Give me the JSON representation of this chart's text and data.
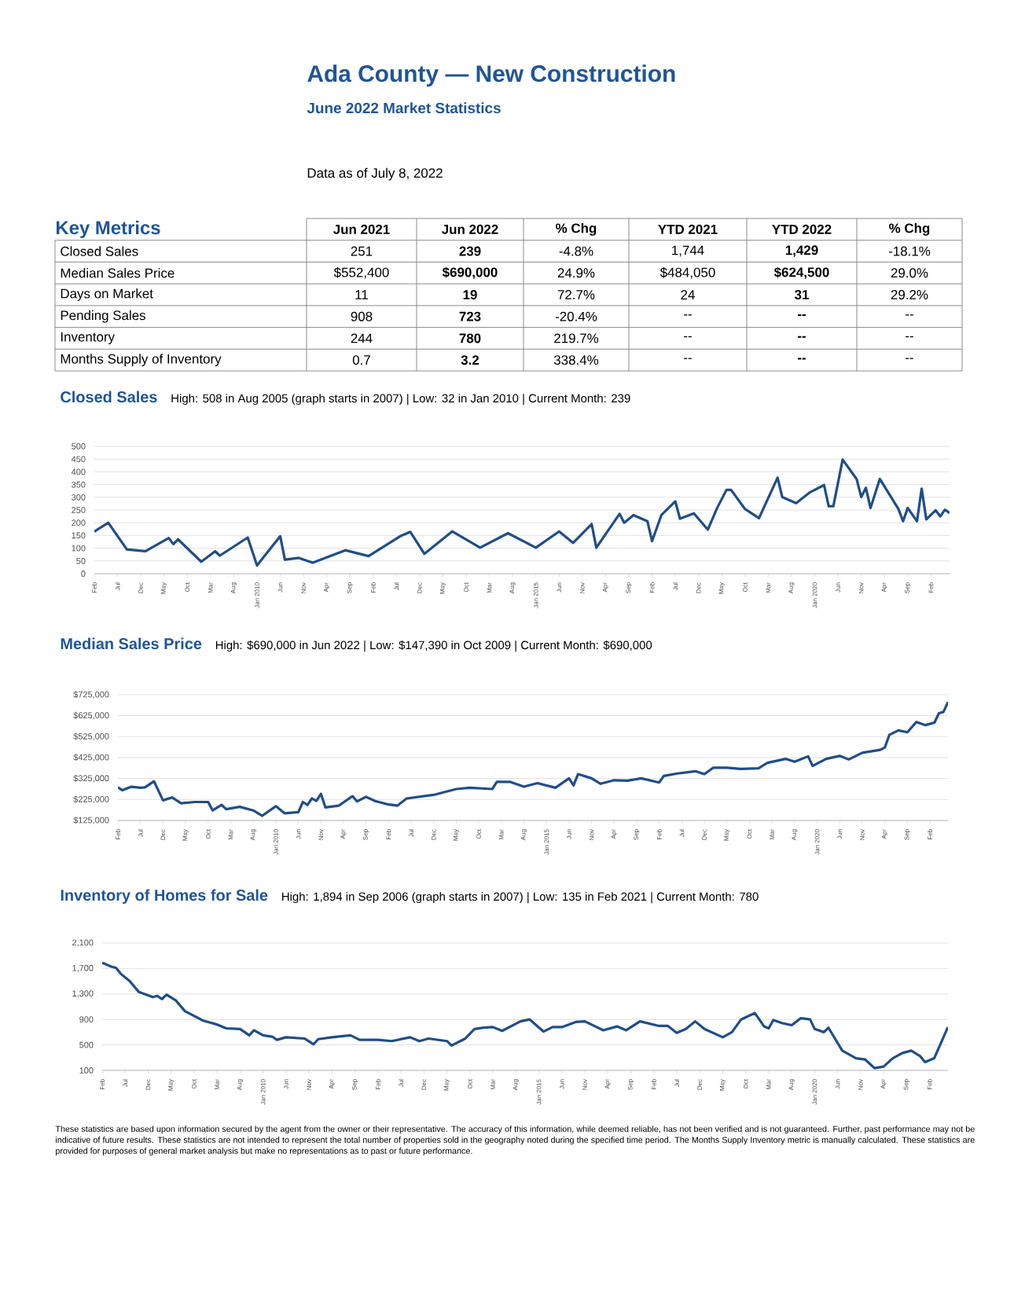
{
  "chart_data": [
    {
      "type": "other",
      "title": "Ada County — New Construction",
      "subtitle": "June 2022 Market Statistics",
      "annotations": [
        "Data as of July 8, 2022"
      ]
    },
    {
      "type": "other",
      "title": "Key Metrics",
      "categories": [
        "Jun 2021",
        "Jun 2022",
        "% Chg",
        "YTD 2021",
        "YTD 2022",
        "% Chg"
      ],
      "y_categories": [
        "Closed Sales",
        "Median Sales Price",
        "Days on Market",
        "Pending Sales",
        "Inventory",
        "Months Supply of Inventory"
      ],
      "cell_labels": [
        [
          "251",
          "239",
          "-4.8%",
          "1,744",
          "1,429",
          "-18.1%"
        ],
        [
          "$552,400",
          "$690,000",
          "24.9%",
          "$484,050",
          "$624,500",
          "29.0%"
        ],
        [
          "11",
          "19",
          "72.7%",
          "24",
          "31",
          "29.2%"
        ],
        [
          "908",
          "723",
          "-20.4%",
          "--",
          "--",
          "--"
        ],
        [
          "244",
          "780",
          "219.7%",
          "--",
          "--",
          "--"
        ],
        [
          "0.7",
          "3.2",
          "338.4%",
          "--",
          "--",
          "--"
        ]
      ]
    },
    {
      "type": "line",
      "title": "Closed Sales",
      "subtitle": "High: 508 in Aug 2005 (graph starts in 2007) | Low: 32 in Jan 2010 | Current Month: 239",
      "x": [
        "2007-02",
        "2007-05",
        "2007-09",
        "2008-01",
        "2008-06",
        "2008-07",
        "2008-08",
        "2009-01",
        "2009-04",
        "2009-05",
        "2009-11",
        "2010-01",
        "2010-06",
        "2010-07",
        "2010-10",
        "2011-01",
        "2011-08",
        "2012-01",
        "2012-08",
        "2012-10",
        "2013-01",
        "2013-07",
        "2014-01",
        "2014-07",
        "2015-01",
        "2015-06",
        "2015-09",
        "2016-01",
        "2016-02",
        "2016-07",
        "2016-08",
        "2016-10",
        "2017-01",
        "2017-02",
        "2017-04",
        "2017-07",
        "2017-08",
        "2017-11",
        "2018-02",
        "2018-04",
        "2018-06",
        "2018-07",
        "2018-10",
        "2019-01",
        "2019-05",
        "2019-06",
        "2019-09",
        "2019-12",
        "2020-03",
        "2020-04",
        "2020-05",
        "2020-07",
        "2020-10",
        "2020-11",
        "2020-12",
        "2021-01",
        "2021-03",
        "2021-07",
        "2021-08",
        "2021-09",
        "2021-11",
        "2021-12",
        "2022-01",
        "2022-03",
        "2022-04",
        "2022-05",
        "2022-06"
      ],
      "series": [
        {
          "color": "#1f4e89",
          "values": [
            165,
            200,
            95,
            88,
            140,
            116,
            135,
            47,
            88,
            71,
            142,
            32,
            147,
            55,
            62,
            43,
            92,
            69,
            149,
            164,
            78,
            166,
            102,
            159,
            102,
            166,
            121,
            195,
            102,
            235,
            200,
            230,
            206,
            128,
            230,
            284,
            216,
            237,
            173,
            258,
            329,
            329,
            254,
            218,
            377,
            301,
            277,
            320,
            348,
            265,
            265,
            448,
            372,
            301,
            337,
            258,
            372,
            254,
            206,
            258,
            206,
            334,
            213,
            249,
            225,
            251,
            239
          ]
        }
      ],
      "xlim": [
        "2007-02",
        "2022-06"
      ],
      "ylim": [
        0,
        500
      ],
      "yticks": [
        0,
        50,
        100,
        150,
        200,
        250,
        300,
        350,
        400,
        450,
        500
      ],
      "xticks": [
        {
          "value": "2007-02",
          "label": "Feb"
        },
        {
          "value": "2007-07",
          "label": "Jul"
        },
        {
          "value": "2007-12",
          "label": "Dec"
        },
        {
          "value": "2008-05",
          "label": "May"
        },
        {
          "value": "2008-10",
          "label": "Oct"
        },
        {
          "value": "2009-03",
          "label": "Mar"
        },
        {
          "value": "2009-08",
          "label": "Aug"
        },
        {
          "value": "2010-01",
          "label": "Jan 2010"
        },
        {
          "value": "2010-06",
          "label": "Jun"
        },
        {
          "value": "2010-11",
          "label": "Nov"
        },
        {
          "value": "2011-04",
          "label": "Apr"
        },
        {
          "value": "2011-09",
          "label": "Sep"
        },
        {
          "value": "2012-02",
          "label": "Feb"
        },
        {
          "value": "2012-07",
          "label": "Jul"
        },
        {
          "value": "2012-12",
          "label": "Dec"
        },
        {
          "value": "2013-05",
          "label": "May"
        },
        {
          "value": "2013-10",
          "label": "Oct"
        },
        {
          "value": "2014-03",
          "label": "Mar"
        },
        {
          "value": "2014-08",
          "label": "Aug"
        },
        {
          "value": "2015-01",
          "label": "Jan 2015"
        },
        {
          "value": "2015-06",
          "label": "Jun"
        },
        {
          "value": "2015-11",
          "label": "Nov"
        },
        {
          "value": "2016-04",
          "label": "Apr"
        },
        {
          "value": "2016-09",
          "label": "Sep"
        },
        {
          "value": "2017-02",
          "label": "Feb"
        },
        {
          "value": "2017-07",
          "label": "Jul"
        },
        {
          "value": "2017-12",
          "label": "Dec"
        },
        {
          "value": "2018-05",
          "label": "May"
        },
        {
          "value": "2018-10",
          "label": "Oct"
        },
        {
          "value": "2019-03",
          "label": "Mar"
        },
        {
          "value": "2019-08",
          "label": "Aug"
        },
        {
          "value": "2020-01",
          "label": "Jan 2020"
        },
        {
          "value": "2020-06",
          "label": "Jun"
        },
        {
          "value": "2020-11",
          "label": "Nov"
        },
        {
          "value": "2021-04",
          "label": "Apr"
        },
        {
          "value": "2021-09",
          "label": "Sep"
        },
        {
          "value": "2022-02",
          "label": "Feb"
        }
      ],
      "grid": "y"
    },
    {
      "type": "line",
      "title": "Median Sales Price",
      "subtitle": "High: $690,000 in Jun 2022 | Low: $147,390 in Oct 2009 | Current Month: $690,000",
      "x": [
        "2007-02",
        "2007-03",
        "2007-05",
        "2007-07",
        "2007-08",
        "2007-10",
        "2007-12",
        "2008-02",
        "2008-04",
        "2008-07",
        "2008-10",
        "2008-11",
        "2009-01",
        "2009-02",
        "2009-05",
        "2009-08",
        "2009-10",
        "2010-01",
        "2010-03",
        "2010-06",
        "2010-07",
        "2010-08",
        "2010-09",
        "2010-10",
        "2010-11",
        "2010-12",
        "2011-03",
        "2011-06",
        "2011-07",
        "2011-09",
        "2011-11",
        "2012-02",
        "2012-04",
        "2012-06",
        "2012-12",
        "2013-05",
        "2013-08",
        "2014-01",
        "2014-02",
        "2014-05",
        "2014-08",
        "2014-11",
        "2015-03",
        "2015-06",
        "2015-07",
        "2015-08",
        "2015-11",
        "2016-01",
        "2016-04",
        "2016-07",
        "2016-10",
        "2017-02",
        "2017-03",
        "2017-06",
        "2017-10",
        "2017-12",
        "2018-02",
        "2018-05",
        "2018-08",
        "2018-12",
        "2019-02",
        "2019-06",
        "2019-08",
        "2019-11",
        "2019-12",
        "2020-03",
        "2020-06",
        "2020-08",
        "2020-11",
        "2021-03",
        "2021-04",
        "2021-05",
        "2021-07",
        "2021-09",
        "2021-11",
        "2022-01",
        "2022-03",
        "2022-04",
        "2022-05",
        "2022-06"
      ],
      "series": [
        {
          "color": "#1f4e89",
          "values": [
            283000,
            269000,
            286000,
            281000,
            283000,
            312000,
            221000,
            235000,
            207000,
            213000,
            213000,
            173000,
            199000,
            179000,
            190000,
            173000,
            147390,
            193000,
            159000,
            165000,
            213000,
            199000,
            230000,
            218000,
            252000,
            187000,
            196000,
            241000,
            216000,
            238000,
            218000,
            201000,
            196000,
            230000,
            247000,
            275000,
            281000,
            275000,
            309000,
            309000,
            286000,
            303000,
            281000,
            326000,
            292000,
            346000,
            326000,
            300000,
            317000,
            315000,
            326000,
            306000,
            337000,
            349000,
            360000,
            346000,
            377000,
            377000,
            371000,
            374000,
            400000,
            419000,
            405000,
            431000,
            385000,
            419000,
            433000,
            416000,
            448000,
            462000,
            473000,
            533000,
            555000,
            546000,
            595000,
            580000,
            592000,
            637000,
            643000,
            690000
          ]
        }
      ],
      "xlim": [
        "2007-02",
        "2022-06"
      ],
      "ylim": [
        125000,
        725000
      ],
      "yticks": [
        {
          "value": 125000,
          "label": "$125,000"
        },
        {
          "value": 225000,
          "label": "$225,000"
        },
        {
          "value": 325000,
          "label": "$325,000"
        },
        {
          "value": 425000,
          "label": "$425,000"
        },
        {
          "value": 525000,
          "label": "$525,000"
        },
        {
          "value": 625000,
          "label": "$625,000"
        },
        {
          "value": 725000,
          "label": "$725,000"
        }
      ],
      "xticks": [
        {
          "value": "2007-02",
          "label": "Feb"
        },
        {
          "value": "2007-07",
          "label": "Jul"
        },
        {
          "value": "2007-12",
          "label": "Dec"
        },
        {
          "value": "2008-05",
          "label": "May"
        },
        {
          "value": "2008-10",
          "label": "Oct"
        },
        {
          "value": "2009-03",
          "label": "Mar"
        },
        {
          "value": "2009-08",
          "label": "Aug"
        },
        {
          "value": "2010-01",
          "label": "Jan 2010"
        },
        {
          "value": "2010-06",
          "label": "Jun"
        },
        {
          "value": "2010-11",
          "label": "Nov"
        },
        {
          "value": "2011-04",
          "label": "Apr"
        },
        {
          "value": "2011-09",
          "label": "Sep"
        },
        {
          "value": "2012-02",
          "label": "Feb"
        },
        {
          "value": "2012-07",
          "label": "Jul"
        },
        {
          "value": "2012-12",
          "label": "Dec"
        },
        {
          "value": "2013-05",
          "label": "May"
        },
        {
          "value": "2013-10",
          "label": "Oct"
        },
        {
          "value": "2014-03",
          "label": "Mar"
        },
        {
          "value": "2014-08",
          "label": "Aug"
        },
        {
          "value": "2015-01",
          "label": "Jan 2015"
        },
        {
          "value": "2015-06",
          "label": "Jun"
        },
        {
          "value": "2015-11",
          "label": "Nov"
        },
        {
          "value": "2016-04",
          "label": "Apr"
        },
        {
          "value": "2016-09",
          "label": "Sep"
        },
        {
          "value": "2017-02",
          "label": "Feb"
        },
        {
          "value": "2017-07",
          "label": "Jul"
        },
        {
          "value": "2017-12",
          "label": "Dec"
        },
        {
          "value": "2018-05",
          "label": "May"
        },
        {
          "value": "2018-10",
          "label": "Oct"
        },
        {
          "value": "2019-03",
          "label": "Mar"
        },
        {
          "value": "2019-08",
          "label": "Aug"
        },
        {
          "value": "2020-01",
          "label": "Jan 2020"
        },
        {
          "value": "2020-06",
          "label": "Jun"
        },
        {
          "value": "2020-11",
          "label": "Nov"
        },
        {
          "value": "2021-04",
          "label": "Apr"
        },
        {
          "value": "2021-09",
          "label": "Sep"
        },
        {
          "value": "2022-02",
          "label": "Feb"
        }
      ],
      "grid": "y"
    },
    {
      "type": "line",
      "title": "Inventory of Homes for Sale",
      "subtitle": "High: 1,894 in Sep 2006 (graph starts in 2007) | Low: 135 in Feb 2021 | Current Month: 780",
      "x": [
        "2007-02",
        "2007-04",
        "2007-05",
        "2007-06",
        "2007-08",
        "2007-10",
        "2008-01",
        "2008-02",
        "2008-03",
        "2008-04",
        "2008-06",
        "2008-08",
        "2008-12",
        "2009-03",
        "2009-05",
        "2009-08",
        "2009-10",
        "2009-11",
        "2010-01",
        "2010-03",
        "2010-04",
        "2010-06",
        "2010-10",
        "2010-12",
        "2011-01",
        "2011-04",
        "2011-08",
        "2011-10",
        "2012-02",
        "2012-05",
        "2012-09",
        "2012-11",
        "2013-01",
        "2013-05",
        "2013-06",
        "2013-09",
        "2013-11",
        "2014-01",
        "2014-03",
        "2014-05",
        "2014-09",
        "2014-11",
        "2015-02",
        "2015-04",
        "2015-06",
        "2015-09",
        "2015-11",
        "2016-03",
        "2016-06",
        "2016-08",
        "2016-11",
        "2017-03",
        "2017-05",
        "2017-07",
        "2017-09",
        "2017-11",
        "2018-01",
        "2018-05",
        "2018-07",
        "2018-09",
        "2018-12",
        "2019-02",
        "2019-03",
        "2019-04",
        "2019-06",
        "2019-08",
        "2019-10",
        "2019-12",
        "2020-01",
        "2020-03",
        "2020-04",
        "2020-07",
        "2020-10",
        "2020-12",
        "2021-02",
        "2021-04",
        "2021-06",
        "2021-08",
        "2021-10",
        "2021-12",
        "2022-01",
        "2022-03",
        "2022-06"
      ],
      "series": [
        {
          "color": "#1f4e89",
          "values": [
            1790,
            1730,
            1710,
            1620,
            1500,
            1330,
            1250,
            1270,
            1220,
            1290,
            1200,
            1030,
            880,
            820,
            760,
            750,
            650,
            730,
            650,
            630,
            580,
            620,
            600,
            510,
            590,
            620,
            650,
            580,
            580,
            560,
            620,
            560,
            600,
            560,
            490,
            600,
            750,
            770,
            780,
            720,
            870,
            900,
            710,
            780,
            780,
            860,
            870,
            730,
            790,
            730,
            870,
            800,
            800,
            690,
            750,
            870,
            750,
            620,
            700,
            900,
            1000,
            790,
            760,
            890,
            840,
            810,
            920,
            900,
            750,
            700,
            770,
            410,
            290,
            270,
            135,
            160,
            290,
            370,
            410,
            320,
            230,
            290,
            780
          ]
        }
      ],
      "xlim": [
        "2007-02",
        "2022-06"
      ],
      "ylim": [
        100,
        2100
      ],
      "yticks": [
        100,
        500,
        900,
        {
          "value": 1300,
          "label": "1,300"
        },
        {
          "value": 1700,
          "label": "1,700"
        },
        {
          "value": 2100,
          "label": "2,100"
        }
      ],
      "xticks": [
        {
          "value": "2007-02",
          "label": "Feb"
        },
        {
          "value": "2007-07",
          "label": "Jul"
        },
        {
          "value": "2007-12",
          "label": "Dec"
        },
        {
          "value": "2008-05",
          "label": "May"
        },
        {
          "value": "2008-10",
          "label": "Oct"
        },
        {
          "value": "2009-03",
          "label": "Mar"
        },
        {
          "value": "2009-08",
          "label": "Aug"
        },
        {
          "value": "2010-01",
          "label": "Jan 2010"
        },
        {
          "value": "2010-06",
          "label": "Jun"
        },
        {
          "value": "2010-11",
          "label": "Nov"
        },
        {
          "value": "2011-04",
          "label": "Apr"
        },
        {
          "value": "2011-09",
          "label": "Sep"
        },
        {
          "value": "2012-02",
          "label": "Feb"
        },
        {
          "value": "2012-07",
          "label": "Jul"
        },
        {
          "value": "2012-12",
          "label": "Dec"
        },
        {
          "value": "2013-05",
          "label": "May"
        },
        {
          "value": "2013-10",
          "label": "Oct"
        },
        {
          "value": "2014-03",
          "label": "Mar"
        },
        {
          "value": "2014-08",
          "label": "Aug"
        },
        {
          "value": "2015-01",
          "label": "Jan 2015"
        },
        {
          "value": "2015-06",
          "label": "Jun"
        },
        {
          "value": "2015-11",
          "label": "Nov"
        },
        {
          "value": "2016-04",
          "label": "Apr"
        },
        {
          "value": "2016-09",
          "label": "Sep"
        },
        {
          "value": "2017-02",
          "label": "Feb"
        },
        {
          "value": "2017-07",
          "label": "Jul"
        },
        {
          "value": "2017-12",
          "label": "Dec"
        },
        {
          "value": "2018-05",
          "label": "May"
        },
        {
          "value": "2018-10",
          "label": "Oct"
        },
        {
          "value": "2019-03",
          "label": "Mar"
        },
        {
          "value": "2019-08",
          "label": "Aug"
        },
        {
          "value": "2020-01",
          "label": "Jan 2020"
        },
        {
          "value": "2020-06",
          "label": "Jun"
        },
        {
          "value": "2020-11",
          "label": "Nov"
        },
        {
          "value": "2021-04",
          "label": "Apr"
        },
        {
          "value": "2021-09",
          "label": "Sep"
        },
        {
          "value": "2022-02",
          "label": "Feb"
        }
      ],
      "grid": "y",
      "annotations": [
        "These statistics are based upon information secured by the agent from the owner or their representative. The accuracy of this information, while deemed reliable, has not been verified and is not guaranteed. Further, past performance may not be indicative of future results. These statistics are not intended to represent the total number of properties sold in the geography noted during the specified time period. The Months Supply Inventory metric is manually calculated. These statistics are provided for purposes of general market analysis but make no representations as to past or future performance."
      ]
    }
  ]
}
